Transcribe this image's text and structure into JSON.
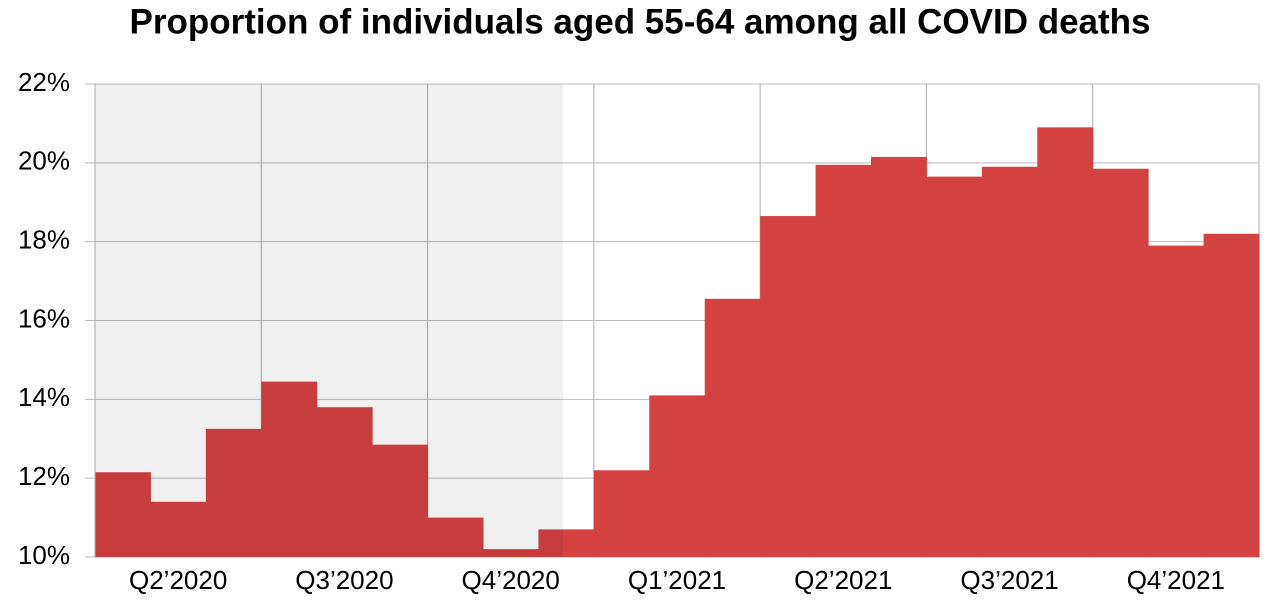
{
  "chart_data": {
    "type": "bar",
    "title": "Proportion of individuals aged 55-64 among all COVID deaths",
    "categories": [
      null,
      "Q2’2020",
      null,
      null,
      "Q3’2020",
      null,
      null,
      "Q4’2020",
      null,
      null,
      "Q1’2021",
      null,
      null,
      "Q2’2021",
      null,
      null,
      "Q3’2021",
      null,
      null,
      "Q4’2021",
      null
    ],
    "values": [
      12.15,
      11.4,
      13.25,
      14.45,
      13.8,
      12.85,
      11.0,
      10.2,
      10.7,
      12.2,
      14.1,
      16.55,
      18.65,
      19.95,
      20.15,
      19.65,
      19.9,
      20.9,
      19.85,
      17.9,
      18.2
    ],
    "color": "#d44141",
    "ylim": [
      10,
      22
    ],
    "yticks": [
      {
        "value": 10,
        "label": "10%"
      },
      {
        "value": 12,
        "label": "12%"
      },
      {
        "value": 14,
        "label": "14%"
      },
      {
        "value": 16,
        "label": "16%"
      },
      {
        "value": 18,
        "label": "18%"
      },
      {
        "value": 20,
        "label": "20%"
      },
      {
        "value": 22,
        "label": "22%"
      }
    ],
    "grid": true
  }
}
